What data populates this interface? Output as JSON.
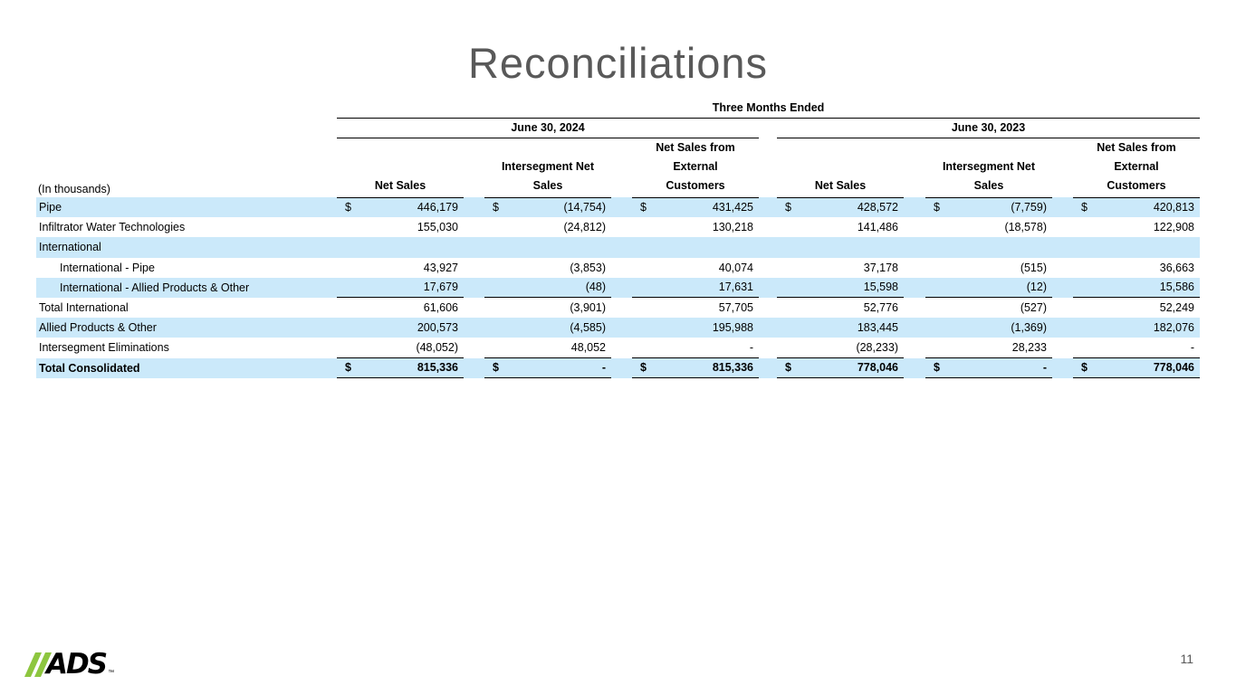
{
  "slide": {
    "title": "Reconciliations",
    "page_number": "11"
  },
  "logo": {
    "text": "ADS",
    "trademark": "™"
  },
  "colors": {
    "row_stripe_blue": "#cbe9fa",
    "logo_green": "#8dc63f",
    "title_gray": "#595959"
  },
  "table": {
    "caption": "Three Months Ended",
    "in_thousands": "(In thousands)",
    "periods": [
      "June 30, 2024",
      "June 30, 2023"
    ],
    "column_headers": [
      "Net Sales",
      "Intersegment Net\nSales",
      "Net Sales from\nExternal\nCustomers",
      "Net Sales",
      "Intersegment Net\nSales",
      "Net Sales from\nExternal\nCustomers"
    ],
    "rows": [
      {
        "label": "Pipe",
        "cells": [
          {
            "d": "$",
            "v": "446,179"
          },
          {
            "d": "$",
            "v": "(14,754)"
          },
          {
            "d": "$",
            "v": "431,425"
          },
          {
            "d": "$",
            "v": "428,572"
          },
          {
            "d": "$",
            "v": "(7,759)"
          },
          {
            "d": "$",
            "v": "420,813"
          }
        ]
      },
      {
        "label": "Infiltrator Water Technologies",
        "cells": [
          {
            "v": "155,030"
          },
          {
            "v": "(24,812)"
          },
          {
            "v": "130,218"
          },
          {
            "v": "141,486"
          },
          {
            "v": "(18,578)"
          },
          {
            "v": "122,908"
          }
        ]
      },
      {
        "label": "International",
        "cells": [
          {},
          {},
          {},
          {},
          {},
          {}
        ]
      },
      {
        "label": "International - Pipe",
        "cells": [
          {
            "v": "43,927"
          },
          {
            "v": "(3,853)"
          },
          {
            "v": "40,074"
          },
          {
            "v": "37,178"
          },
          {
            "v": "(515)"
          },
          {
            "v": "36,663"
          }
        ]
      },
      {
        "label": "International - Allied Products & Other",
        "cells": [
          {
            "v": "17,679"
          },
          {
            "v": "(48)"
          },
          {
            "v": "17,631"
          },
          {
            "v": "15,598"
          },
          {
            "v": "(12)"
          },
          {
            "v": "15,586"
          }
        ]
      },
      {
        "label": "Total International",
        "cells": [
          {
            "v": "61,606"
          },
          {
            "v": "(3,901)"
          },
          {
            "v": "57,705"
          },
          {
            "v": "52,776"
          },
          {
            "v": "(527)"
          },
          {
            "v": "52,249"
          }
        ]
      },
      {
        "label": "Allied Products & Other",
        "cells": [
          {
            "v": "200,573"
          },
          {
            "v": "(4,585)"
          },
          {
            "v": "195,988"
          },
          {
            "v": "183,445"
          },
          {
            "v": "(1,369)"
          },
          {
            "v": "182,076"
          }
        ]
      },
      {
        "label": "Intersegment Eliminations",
        "cells": [
          {
            "v": "(48,052)"
          },
          {
            "v": "48,052"
          },
          {
            "v": "-"
          },
          {
            "v": "(28,233)"
          },
          {
            "v": "28,233"
          },
          {
            "v": "-"
          }
        ]
      },
      {
        "label": "Total Consolidated",
        "cells": [
          {
            "d": "$",
            "v": "815,336"
          },
          {
            "d": "$",
            "v": "-"
          },
          {
            "d": "$",
            "v": "815,336"
          },
          {
            "d": "$",
            "v": "778,046"
          },
          {
            "d": "$",
            "v": "-"
          },
          {
            "d": "$",
            "v": "778,046"
          }
        ]
      }
    ]
  }
}
